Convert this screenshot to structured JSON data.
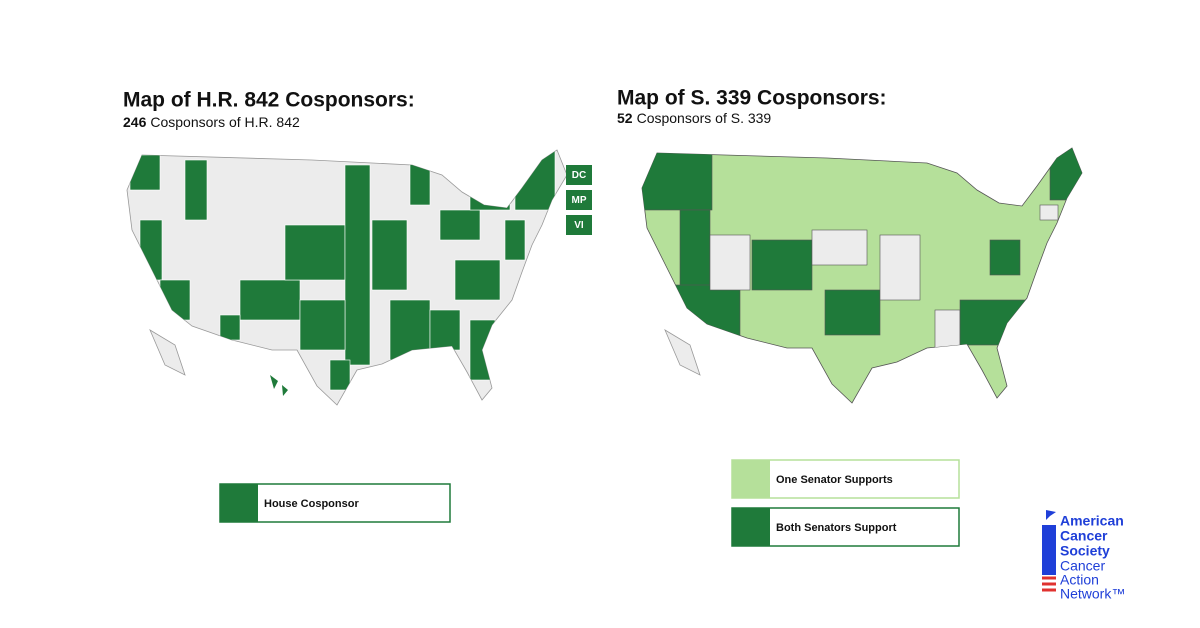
{
  "left_map": {
    "title": "Map of H.R. 842 Cosponsors:",
    "count": 246,
    "subtitle": "Cosponsors of H.R. 842",
    "territories": [
      "DC",
      "MP",
      "VI"
    ],
    "legend": [
      {
        "label": "House Cosponsor",
        "color": "#1f7a3a"
      }
    ]
  },
  "right_map": {
    "title": "Map of S. 339 Cosponsors:",
    "count": 52,
    "subtitle": "Cosponsors of S. 339",
    "legend": [
      {
        "label": "One Senator Supports",
        "color": "#b5e09a"
      },
      {
        "label": "Both Senators Support",
        "color": "#1f7a3a"
      }
    ]
  },
  "logo": {
    "bold_lines": [
      "American",
      "Cancer",
      "Society"
    ],
    "lines": [
      "Cancer",
      "Action",
      "Network™"
    ]
  }
}
